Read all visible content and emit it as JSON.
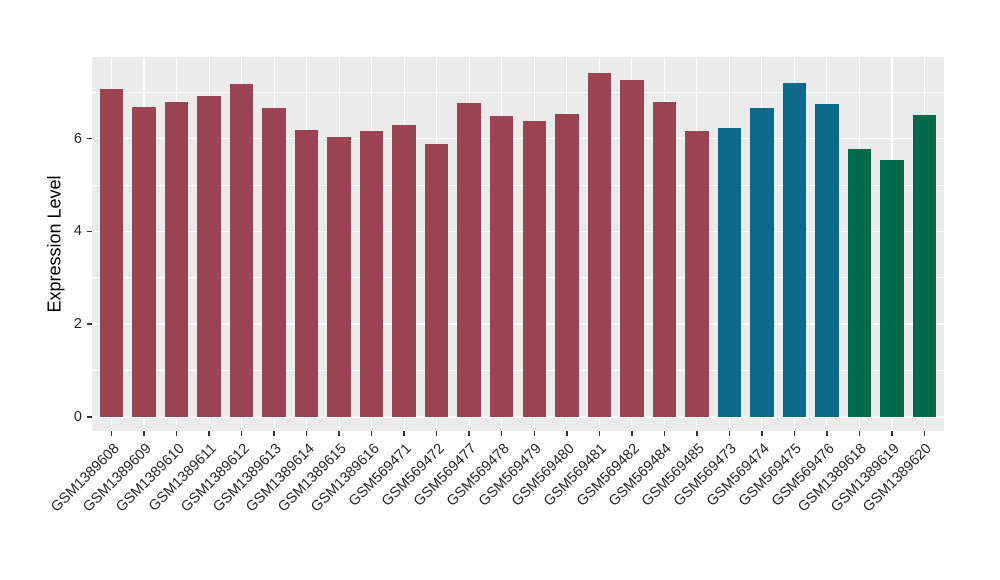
{
  "figure": {
    "background": "#FFFFFF",
    "panel_background": "#EBEBEB",
    "grid_color": "#FFFFFF",
    "axis_text_color": "#262626",
    "axis_title_color": "#000000",
    "tick_mark_color": "#333333"
  },
  "chart_data": {
    "type": "bar",
    "title": "",
    "xlabel": "",
    "ylabel": "Expression Level",
    "ylim": [
      0,
      7.76
    ],
    "yticks": [
      0,
      2,
      4,
      6
    ],
    "minor_gridlines": [
      1,
      3,
      5,
      7
    ],
    "grid": "on",
    "legend": "none",
    "x_tick_rotation_deg": 45,
    "group_colors": {
      "group1": "#9A4352",
      "group2": "#0D6989",
      "group3": "#006A49"
    },
    "bars": [
      {
        "label": "GSM1389608",
        "value": 7.08,
        "color": "#9A4352"
      },
      {
        "label": "GSM1389609",
        "value": 6.69,
        "color": "#9A4352"
      },
      {
        "label": "GSM1389610",
        "value": 6.8,
        "color": "#9A4352"
      },
      {
        "label": "GSM1389611",
        "value": 6.93,
        "color": "#9A4352"
      },
      {
        "label": "GSM1389612",
        "value": 7.17,
        "color": "#9A4352"
      },
      {
        "label": "GSM1389613",
        "value": 6.66,
        "color": "#9A4352"
      },
      {
        "label": "GSM1389614",
        "value": 6.18,
        "color": "#9A4352"
      },
      {
        "label": "GSM1389615",
        "value": 6.03,
        "color": "#9A4352"
      },
      {
        "label": "GSM1389616",
        "value": 6.16,
        "color": "#9A4352"
      },
      {
        "label": "GSM569471",
        "value": 6.3,
        "color": "#9A4352"
      },
      {
        "label": "GSM569472",
        "value": 5.88,
        "color": "#9A4352"
      },
      {
        "label": "GSM569477",
        "value": 6.77,
        "color": "#9A4352"
      },
      {
        "label": "GSM569478",
        "value": 6.48,
        "color": "#9A4352"
      },
      {
        "label": "GSM569479",
        "value": 6.38,
        "color": "#9A4352"
      },
      {
        "label": "GSM569480",
        "value": 6.54,
        "color": "#9A4352"
      },
      {
        "label": "GSM569481",
        "value": 7.41,
        "color": "#9A4352"
      },
      {
        "label": "GSM569482",
        "value": 7.27,
        "color": "#9A4352"
      },
      {
        "label": "GSM569484",
        "value": 6.79,
        "color": "#9A4352"
      },
      {
        "label": "GSM569485",
        "value": 6.17,
        "color": "#9A4352"
      },
      {
        "label": "GSM569473",
        "value": 6.22,
        "color": "#0D6989"
      },
      {
        "label": "GSM569474",
        "value": 6.67,
        "color": "#0D6989"
      },
      {
        "label": "GSM569475",
        "value": 7.21,
        "color": "#0D6989"
      },
      {
        "label": "GSM569476",
        "value": 6.74,
        "color": "#0D6989"
      },
      {
        "label": "GSM1389618",
        "value": 5.77,
        "color": "#006A49"
      },
      {
        "label": "GSM1389619",
        "value": 5.53,
        "color": "#006A49"
      },
      {
        "label": "GSM1389620",
        "value": 6.52,
        "color": "#006A49"
      }
    ]
  }
}
